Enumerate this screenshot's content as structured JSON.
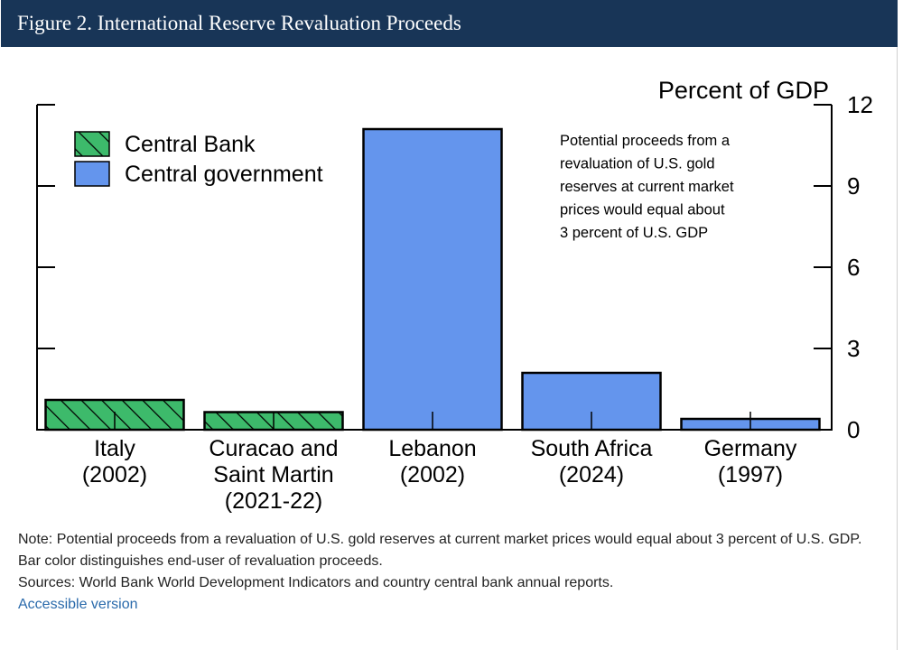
{
  "header": {
    "title": "Figure 2. International Reserve Revaluation Proceeds"
  },
  "chart_data": {
    "type": "bar",
    "ylabel": "Percent of GDP",
    "ylim": [
      0,
      12
    ],
    "yticks": [
      0,
      3,
      6,
      9,
      12
    ],
    "y_axis_side": "right",
    "legend_position": "top-left",
    "legend": [
      {
        "name": "Central Bank",
        "style": "hatched",
        "color": "#3dba6b"
      },
      {
        "name": "Central government",
        "style": "solid",
        "color": "#6495ed"
      }
    ],
    "categories": [
      {
        "lines": [
          "Italy",
          "(2002)"
        ],
        "value": 1.1,
        "series": "Central Bank"
      },
      {
        "lines": [
          "Curacao and",
          "Saint Martin",
          "(2021-22)"
        ],
        "value": 0.65,
        "series": "Central Bank"
      },
      {
        "lines": [
          "Lebanon",
          "(2002)"
        ],
        "value": 11.1,
        "series": "Central government"
      },
      {
        "lines": [
          "South Africa",
          "(2024)"
        ],
        "value": 2.1,
        "series": "Central government"
      },
      {
        "lines": [
          "Germany",
          "(1997)"
        ],
        "value": 0.4,
        "series": "Central government"
      }
    ],
    "annotation": [
      "Potential proceeds from a",
      "revaluation of U.S. gold",
      "reserves at current market",
      "prices would equal about",
      "3 percent of U.S. GDP"
    ]
  },
  "notes": {
    "note": "Note: Potential proceeds from a revaluation of U.S. gold reserves at current market prices would equal about 3 percent of U.S. GDP. Bar color distinguishes end-user of revaluation proceeds.",
    "sources": "Sources: World Bank World Development Indicators and country central bank annual reports.",
    "link": "Accessible version"
  }
}
